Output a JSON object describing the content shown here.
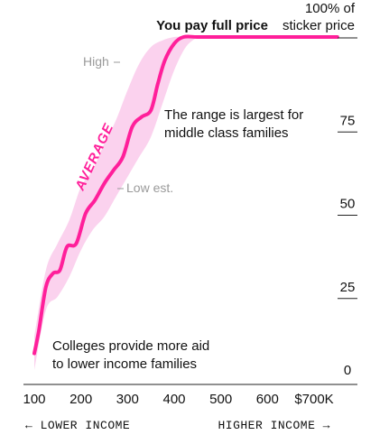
{
  "chart_data": {
    "type": "area",
    "x_ticks": [
      "100",
      "200",
      "300",
      "400",
      "500",
      "600",
      "$700K"
    ],
    "x_tick_values": [
      100,
      200,
      300,
      400,
      500,
      600,
      700
    ],
    "y_ticks": [
      "0",
      "25",
      "50",
      "75"
    ],
    "y_tick_values": [
      0,
      25,
      50,
      75
    ],
    "y_top_label_line1": "100% of",
    "y_top_label_line2": "sticker price",
    "xlim": [
      80,
      770
    ],
    "ylim": [
      0,
      100
    ],
    "series": [
      {
        "name": "AVERAGE",
        "x": [
          100,
          110,
          125,
          140,
          155,
          170,
          190,
          210,
          230,
          250,
          270,
          290,
          310,
          330,
          350,
          365,
          380,
          400,
          420,
          450,
          500,
          600,
          700,
          750
        ],
        "y": [
          5,
          12,
          25,
          29,
          30,
          37,
          38,
          47,
          51,
          56,
          60,
          64,
          73,
          76,
          78,
          86,
          93,
          98,
          100,
          100,
          100,
          100,
          100,
          100
        ]
      },
      {
        "name": "High",
        "x": [
          100,
          125,
          150,
          175,
          200,
          225,
          250,
          275,
          300,
          325,
          350,
          375,
          400,
          425,
          450
        ],
        "y": [
          10,
          30,
          38,
          45,
          55,
          60,
          68,
          75,
          84,
          92,
          97,
          99,
          100,
          100,
          100
        ]
      },
      {
        "name": "Low est.",
        "x": [
          100,
          125,
          150,
          175,
          200,
          225,
          250,
          275,
          300,
          325,
          350,
          375,
          400,
          425,
          450
        ],
        "y": [
          0,
          18,
          22,
          28,
          36,
          42,
          46,
          52,
          58,
          64,
          70,
          80,
          90,
          97,
          100
        ]
      }
    ],
    "series_labels": {
      "average": "AVERAGE",
      "high": "High",
      "low": "Low est."
    },
    "annotations": {
      "full_price": "You pay full price",
      "middle_line1": "The range is largest for",
      "middle_line2": "middle class families",
      "bottom_line1": "Colleges provide more aid",
      "bottom_line2": "to lower income families"
    },
    "x_direction": {
      "left": "← LOWER INCOME",
      "right": "HIGHER INCOME →"
    },
    "colors": {
      "line": "#ff1f9a",
      "band": "#fbd2ee"
    }
  }
}
